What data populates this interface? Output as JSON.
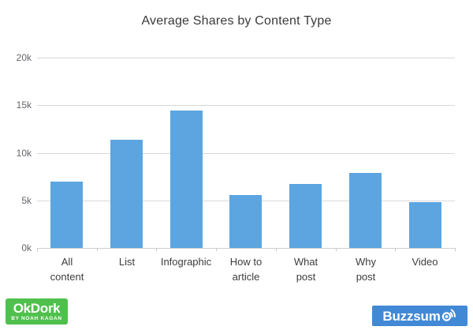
{
  "title": "Average Shares by Content Type",
  "chart_data": {
    "type": "bar",
    "title": "Average Shares by Content Type",
    "categories": [
      "All content",
      "List",
      "Infographic",
      "How to article",
      "What post",
      "Why post",
      "Video"
    ],
    "category_lines": [
      [
        "All",
        "content"
      ],
      [
        "List"
      ],
      [
        "Infographic"
      ],
      [
        "How to",
        "article"
      ],
      [
        "What",
        "post"
      ],
      [
        "Why",
        "post"
      ],
      [
        "Video"
      ]
    ],
    "values": [
      7000,
      11400,
      14400,
      5600,
      6700,
      7900,
      4800
    ],
    "xlabel": "",
    "ylabel": "",
    "ylim": [
      0,
      20000
    ],
    "yticks": [
      0,
      5000,
      10000,
      15000,
      20000
    ],
    "ytick_labels": [
      "0k",
      "5k",
      "10k",
      "15k",
      "20k"
    ],
    "grid": true,
    "legend": false,
    "bar_color": "#5CA5E0"
  },
  "colors": {
    "bar": "#5CA5E0",
    "gridline": "#d8d8d8",
    "okdork_green": "#4FC04C",
    "buzzsumo_blue": "#4289D5"
  },
  "footer": {
    "okdork": {
      "line1": "OkDork",
      "line2": "BY NOAH KAGAN"
    },
    "buzzsumo": {
      "text": "Buzzsumo",
      "display_prefix": "Buzzsum",
      "icon": "broadcast-o-icon"
    }
  }
}
